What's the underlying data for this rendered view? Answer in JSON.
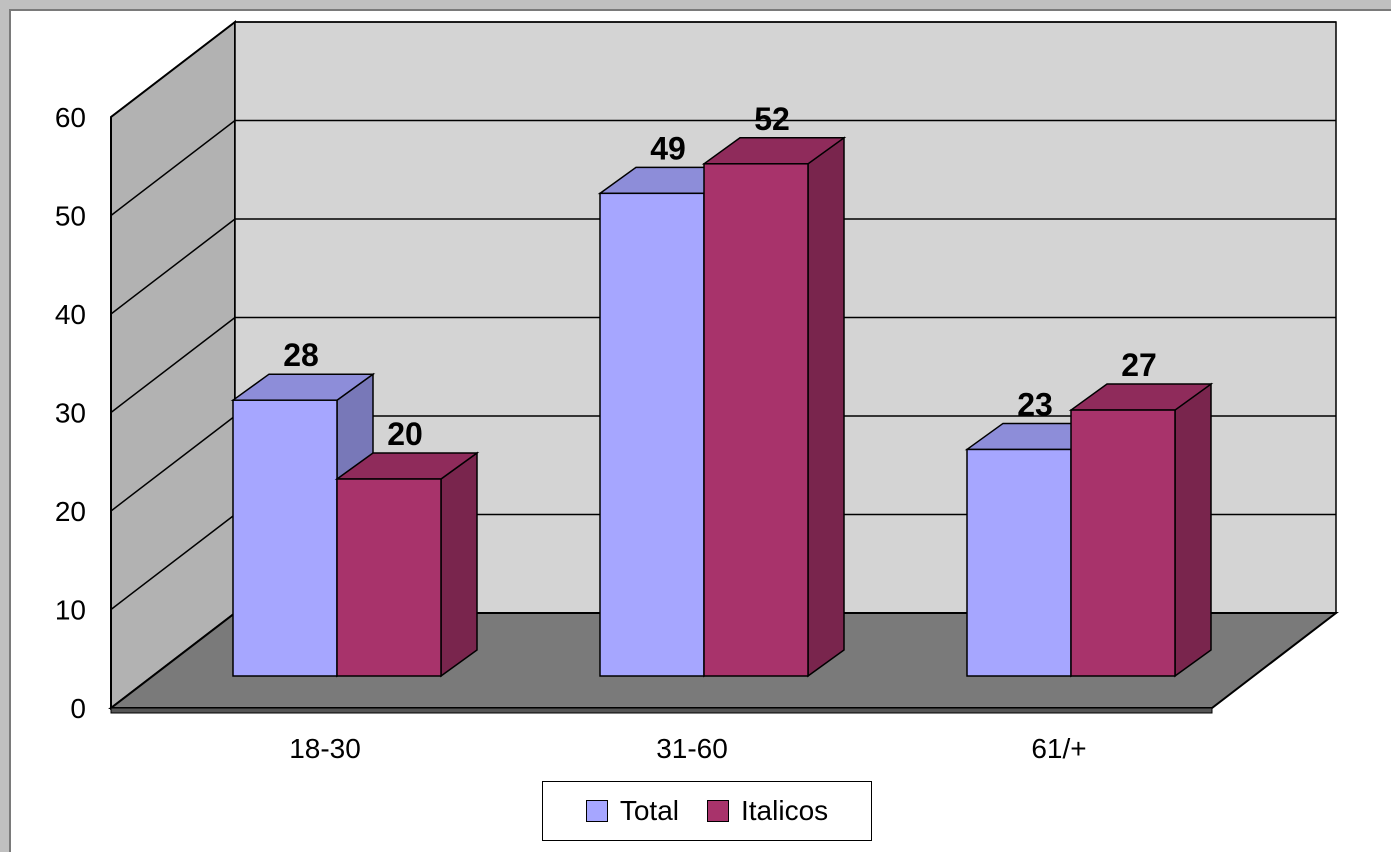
{
  "chart_data": {
    "type": "bar",
    "categories": [
      "18-30",
      "31-60",
      "61/+"
    ],
    "series": [
      {
        "name": "Total",
        "values": [
          28,
          49,
          23
        ],
        "color": "#a6a6ff",
        "label_color": "#000000"
      },
      {
        "name": "Italicos",
        "values": [
          20,
          52,
          27
        ],
        "color": "#a8336b",
        "label_color": "#000000"
      }
    ],
    "ylim": [
      0,
      60
    ],
    "yticks": [
      0,
      10,
      20,
      30,
      40,
      50,
      60
    ],
    "title": "",
    "xlabel": "",
    "ylabel": "",
    "grid": true,
    "three_d": true,
    "legend_position": "bottom",
    "colors": {
      "back_wall": "#d4d4d4",
      "side_wall": "#b2b2b2",
      "floor": "#7a7a7a",
      "gridline": "#000000"
    }
  }
}
